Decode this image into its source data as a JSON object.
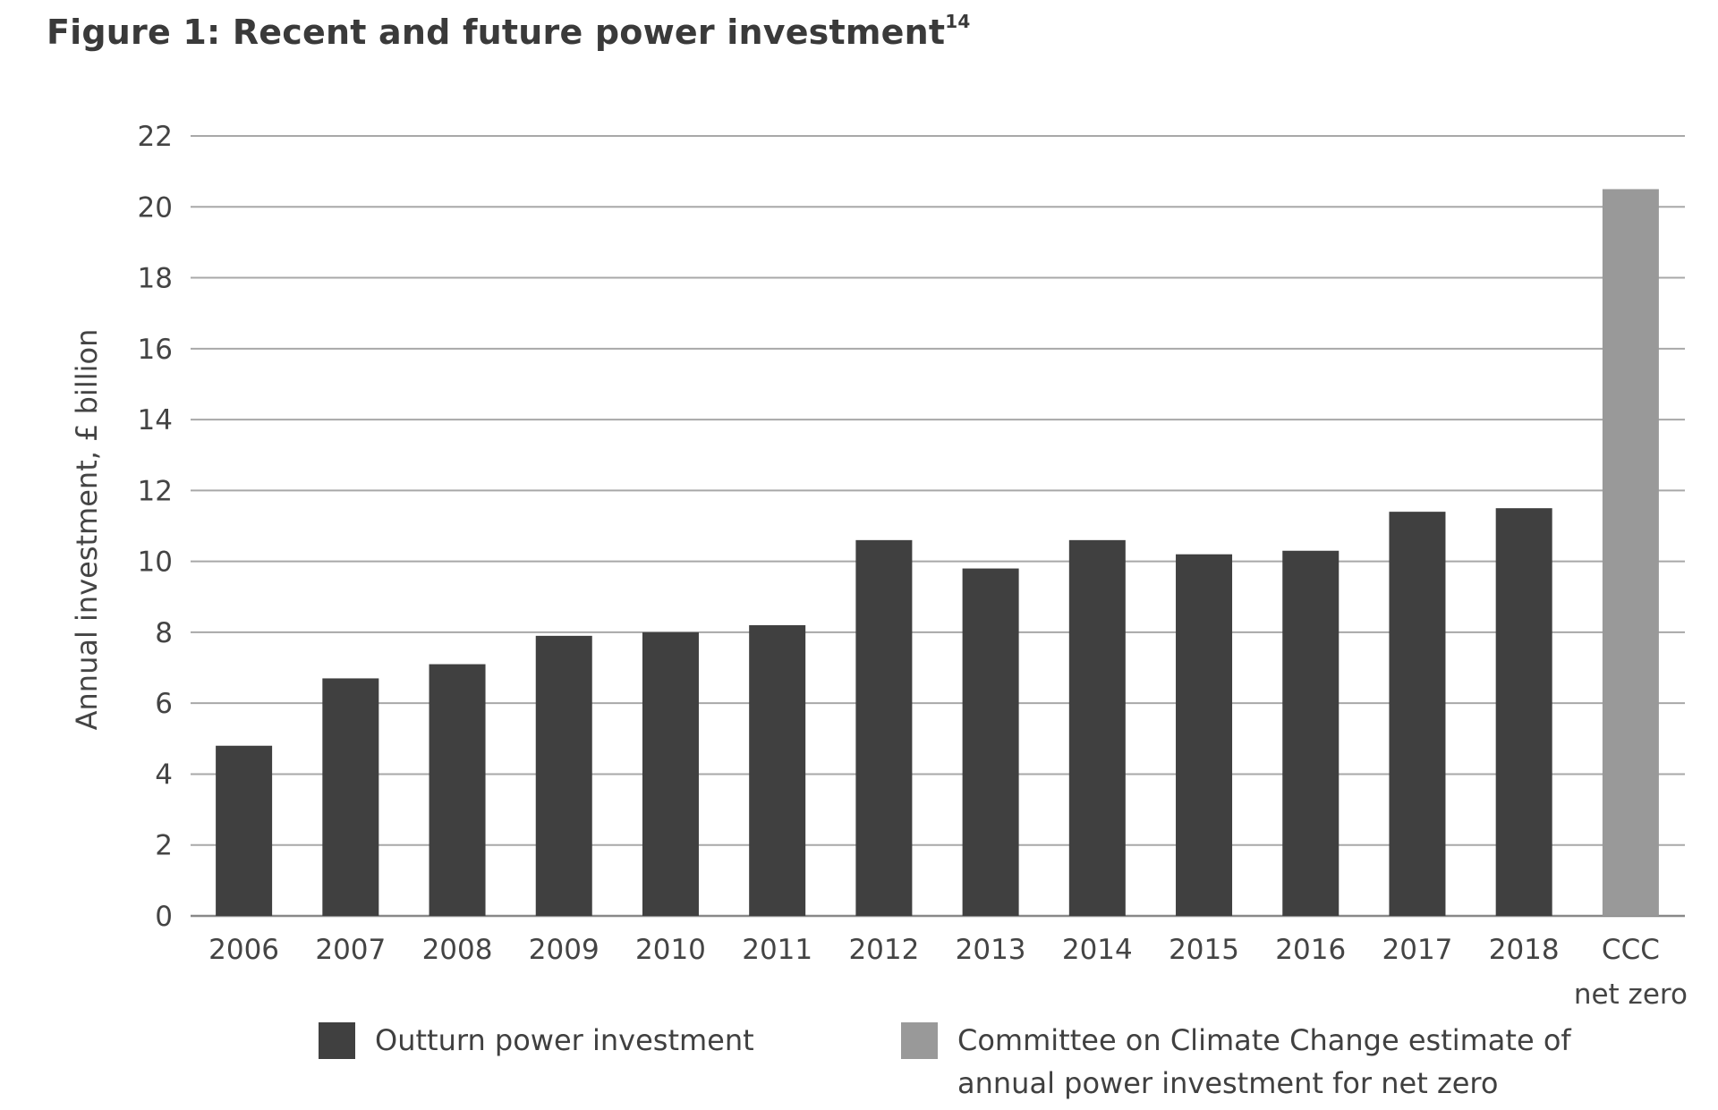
{
  "title": {
    "text": "Figure 1: Recent and future power investment",
    "footnote": "14"
  },
  "chart_data": {
    "type": "bar",
    "ylabel": "Annual investment, £ billion",
    "xlabel": "",
    "ylim": [
      0,
      22
    ],
    "yticks": [
      "0",
      "2",
      "4",
      "6",
      "8",
      "10",
      "12",
      "14",
      "16",
      "18",
      "20",
      "22"
    ],
    "grid": true,
    "categories": [
      "2006",
      "2007",
      "2008",
      "2009",
      "2010",
      "2011",
      "2012",
      "2013",
      "2014",
      "2015",
      "2016",
      "2017",
      "2018",
      "CCC net zero"
    ],
    "category_labels": [
      [
        "2006"
      ],
      [
        "2007"
      ],
      [
        "2008"
      ],
      [
        "2009"
      ],
      [
        "2010"
      ],
      [
        "2011"
      ],
      [
        "2012"
      ],
      [
        "2013"
      ],
      [
        "2014"
      ],
      [
        "2015"
      ],
      [
        "2016"
      ],
      [
        "2017"
      ],
      [
        "2018"
      ],
      [
        "CCC",
        "net zero"
      ]
    ],
    "series": [
      {
        "name": "Outturn power investment",
        "color": "#404040",
        "values": [
          4.8,
          6.7,
          7.1,
          7.9,
          8.0,
          8.2,
          10.6,
          9.8,
          10.6,
          10.2,
          10.3,
          11.4,
          11.5,
          null
        ]
      },
      {
        "name": "Committee on Climate Change estimate of annual power investment for net zero",
        "color": "#999999",
        "values": [
          null,
          null,
          null,
          null,
          null,
          null,
          null,
          null,
          null,
          null,
          null,
          null,
          null,
          20.5
        ]
      }
    ],
    "legend_position": "bottom"
  },
  "legend": [
    {
      "lines": [
        "Outturn power investment"
      ],
      "color": "#404040"
    },
    {
      "lines": [
        "Committee on Climate Change estimate of",
        "annual power investment for net zero"
      ],
      "color": "#999999"
    }
  ]
}
